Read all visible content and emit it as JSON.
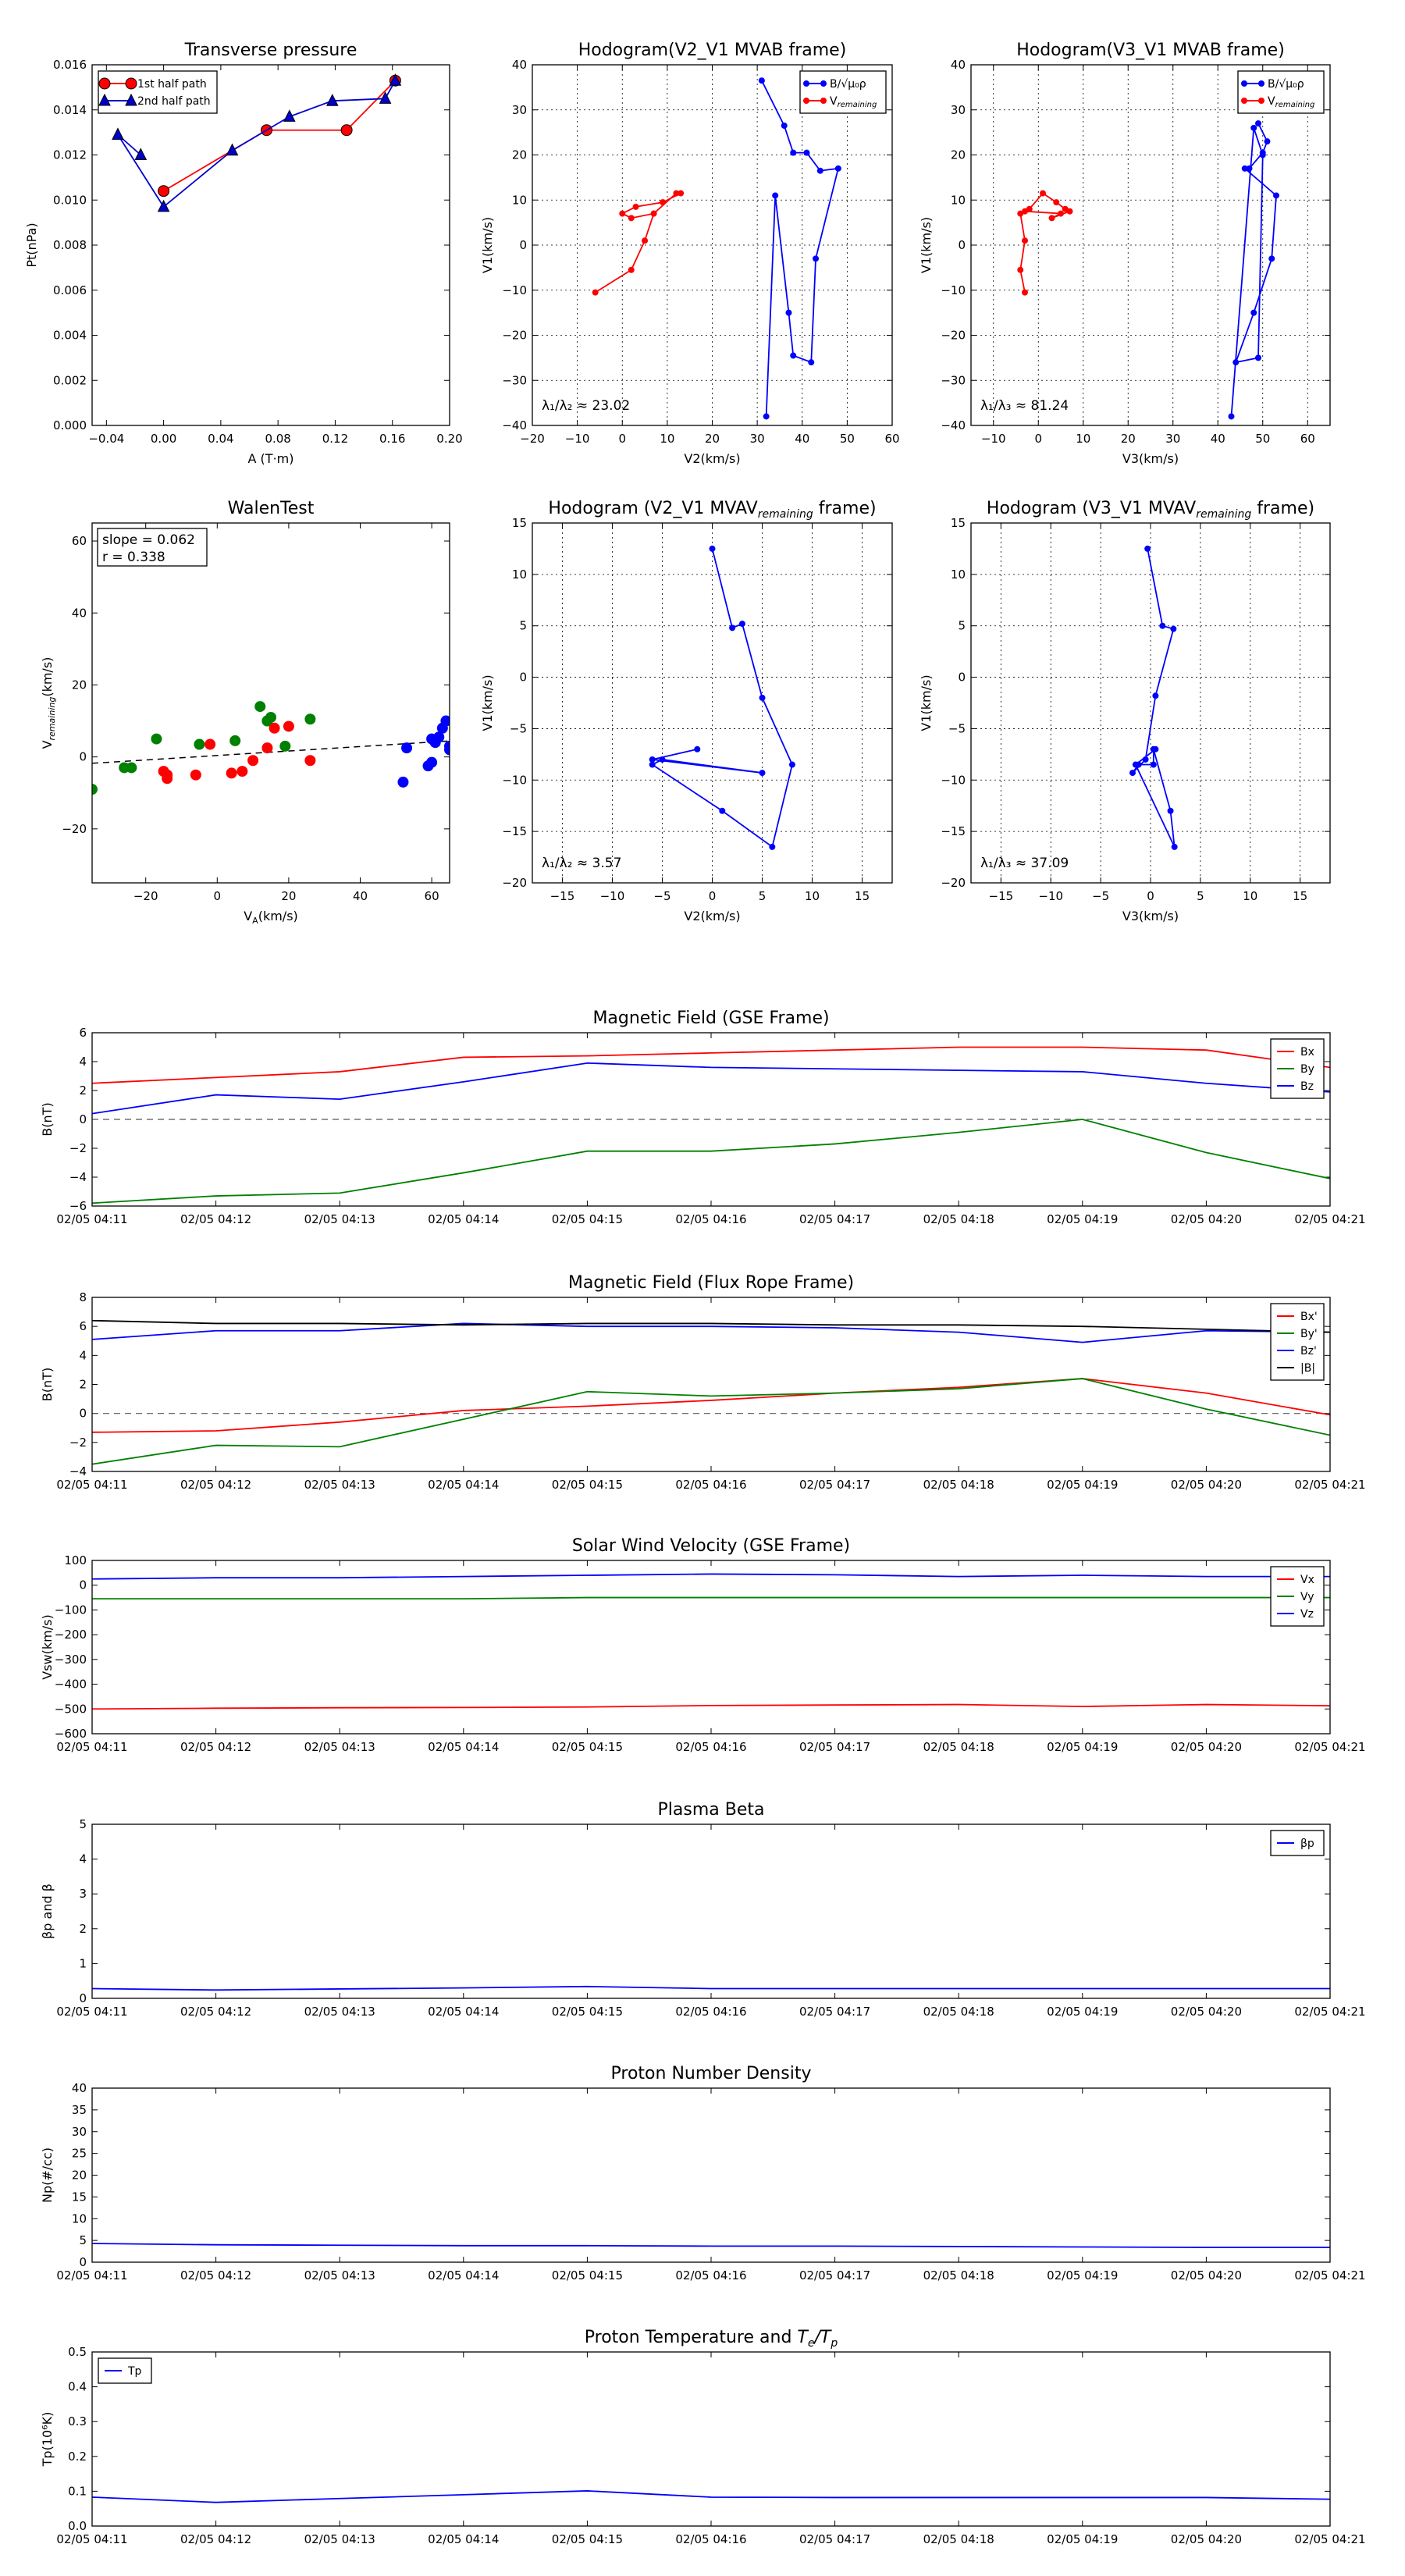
{
  "chart_data": [
    {
      "id": "pt",
      "type": "line",
      "title": "Transverse pressure",
      "xlabel": "A (T·m)",
      "ylabel": "Pt(nPa)",
      "xlim": [
        -0.05,
        0.2
      ],
      "ylim": [
        0,
        0.016
      ],
      "xticks": [
        -0.04,
        0.0,
        0.04,
        0.08,
        0.12,
        0.16,
        0.2
      ],
      "xticklabels": [
        "−0.04",
        "0.00",
        "0.04",
        "0.08",
        "0.12",
        "0.16",
        "0.20"
      ],
      "yticks": [
        0,
        0.002,
        0.004,
        0.006,
        0.008,
        0.01,
        0.012,
        0.014,
        0.016
      ],
      "yticklabels": [
        "0.000",
        "0.002",
        "0.004",
        "0.006",
        "0.008",
        "0.010",
        "0.012",
        "0.014",
        "0.016"
      ],
      "grid": false,
      "legend": "top-left",
      "series": [
        {
          "name": "1st half path",
          "color": "#ff0000",
          "marker": "circle",
          "x": [
            0.0,
            0.072,
            0.128,
            0.162
          ],
          "y": [
            0.0104,
            0.0131,
            0.0131,
            0.0153
          ]
        },
        {
          "name": "2nd half path",
          "color": "#0000cc",
          "marker": "triangle",
          "x": [
            0.162,
            0.155,
            0.118,
            0.088,
            0.048,
            0.0,
            -0.032,
            -0.016
          ],
          "y": [
            0.0153,
            0.0145,
            0.0144,
            0.0137,
            0.0122,
            0.0097,
            0.0129,
            0.012
          ]
        }
      ]
    },
    {
      "id": "h1",
      "type": "line",
      "title": "Hodogram(V2_V1 MVAB frame)",
      "xlabel": "V2(km/s)",
      "ylabel": "V1(km/s)",
      "xlim": [
        -20,
        60
      ],
      "ylim": [
        -40,
        40
      ],
      "xticks": [
        -20,
        -10,
        0,
        10,
        20,
        30,
        40,
        50,
        60
      ],
      "yticks": [
        -40,
        -30,
        -20,
        -10,
        0,
        10,
        20,
        30,
        40
      ],
      "grid": true,
      "legend": "top-right",
      "annotation": "λ₁/λ₂ ≈ 23.02",
      "series": [
        {
          "name": "B/√μ₀ρ",
          "color": "#0000ff",
          "marker": "dot",
          "x": [
            31,
            36,
            38,
            41,
            44,
            48,
            43,
            42,
            38,
            37,
            34,
            32
          ],
          "y": [
            36.5,
            26.5,
            20.5,
            20.5,
            16.5,
            17,
            -3,
            -26,
            -24.5,
            -15,
            11,
            -38
          ]
        },
        {
          "name": "V_remaining",
          "color": "#ff0000",
          "marker": "dot",
          "x": [
            13,
            9,
            3,
            0,
            2,
            7,
            12,
            7,
            5,
            2,
            -6
          ],
          "y": [
            11.5,
            9.5,
            8.5,
            7,
            6,
            7,
            11.5,
            7,
            1,
            -5.5,
            -10.5
          ]
        }
      ]
    },
    {
      "id": "h2",
      "type": "line",
      "title": "Hodogram(V3_V1 MVAB frame)",
      "xlabel": "V3(km/s)",
      "ylabel": "V1(km/s)",
      "xlim": [
        -15,
        65
      ],
      "ylim": [
        -40,
        40
      ],
      "xticks": [
        -10,
        0,
        10,
        20,
        30,
        40,
        50,
        60
      ],
      "yticks": [
        -40,
        -30,
        -20,
        -10,
        0,
        10,
        20,
        30,
        40
      ],
      "grid": true,
      "legend": "top-right",
      "annotation": "λ₁/λ₃ ≈ 81.24",
      "series": [
        {
          "name": "B/√μ₀ρ",
          "color": "#0000ff",
          "marker": "dot",
          "x": [
            49,
            51,
            50,
            47,
            46,
            53,
            52,
            48,
            44,
            49,
            50,
            48,
            43
          ],
          "y": [
            27,
            23,
            20.5,
            17,
            17,
            11,
            -3,
            -15,
            -26,
            -25,
            20,
            26,
            -38
          ]
        },
        {
          "name": "V_remaining",
          "color": "#ff0000",
          "marker": "dot",
          "x": [
            -3,
            -4,
            -3,
            -4,
            -2,
            1,
            4,
            6,
            7,
            3,
            5,
            -3
          ],
          "y": [
            -10.5,
            -5.5,
            1,
            7,
            8,
            11.5,
            9.5,
            8,
            7.5,
            6,
            7,
            7.5
          ]
        }
      ]
    },
    {
      "id": "walen",
      "type": "scatter",
      "title": "WalenTest",
      "xlabel": "V_A(km/s)",
      "ylabel": "V_remaining(km/s)",
      "xlim": [
        -35,
        65
      ],
      "ylim": [
        -35,
        65
      ],
      "xticks": [
        -20,
        0,
        20,
        40,
        60
      ],
      "yticks": [
        -20,
        0,
        20,
        40,
        60
      ],
      "grid": false,
      "annotation": [
        "slope = 0.062",
        "r = 0.338"
      ],
      "fit_line": {
        "slope": 0.062,
        "intercept": 0.4
      },
      "series": [
        {
          "name": "",
          "color": "#008000",
          "x": [
            -35,
            -26,
            -24,
            -17,
            -5,
            5,
            12,
            14,
            15,
            19,
            26,
            14
          ],
          "y": [
            -9,
            -3,
            -3,
            5,
            3.5,
            4.5,
            14,
            10,
            11,
            3,
            10.5,
            10
          ]
        },
        {
          "name": "",
          "color": "#ff0000",
          "x": [
            -15,
            -14,
            -14,
            -6,
            -2,
            4,
            7,
            10,
            14,
            16,
            20,
            26
          ],
          "y": [
            -4,
            -5,
            -6,
            -5,
            3.5,
            -4.5,
            -4,
            -1,
            2.5,
            8,
            8.5,
            -1
          ]
        },
        {
          "name": "",
          "color": "#0000ff",
          "x": [
            52,
            53,
            59,
            60,
            60,
            61,
            62,
            63,
            64,
            65,
            65
          ],
          "y": [
            -7,
            2.5,
            -2.5,
            5,
            -1.5,
            4,
            5.5,
            8,
            10,
            3,
            2
          ]
        }
      ]
    },
    {
      "id": "h3",
      "type": "line",
      "title": "Hodogram (V2_V1 MVAV_remaining frame)",
      "xlabel": "V2(km/s)",
      "ylabel": "V1(km/s)",
      "xlim": [
        -18,
        18
      ],
      "ylim": [
        -20,
        15
      ],
      "xticks": [
        -15,
        -10,
        -5,
        0,
        5,
        10,
        15
      ],
      "yticks": [
        -20,
        -15,
        -10,
        -5,
        0,
        5,
        10,
        15
      ],
      "grid": true,
      "annotation": "λ₁/λ₂ ≈ 3.57",
      "series": [
        {
          "name": "",
          "color": "#0000ff",
          "marker": "dot",
          "x": [
            0,
            2,
            3,
            5,
            8,
            6,
            1,
            -6,
            -5,
            5,
            -6,
            -1.5
          ],
          "y": [
            12.5,
            4.8,
            5.2,
            -2,
            -8.5,
            -16.5,
            -13,
            -8.5,
            -8,
            -9.3,
            -8,
            -7
          ]
        }
      ]
    },
    {
      "id": "h4",
      "type": "line",
      "title": "Hodogram (V3_V1 MVAV_remaining frame)",
      "xlabel": "V3(km/s)",
      "ylabel": "V1(km/s)",
      "xlim": [
        -18,
        18
      ],
      "ylim": [
        -20,
        15
      ],
      "xticks": [
        -15,
        -10,
        -5,
        0,
        5,
        10,
        15
      ],
      "yticks": [
        -20,
        -15,
        -10,
        -5,
        0,
        5,
        10,
        15
      ],
      "grid": true,
      "annotation": "λ₁/λ₃ ≈ 37.09",
      "series": [
        {
          "name": "",
          "color": "#0000ff",
          "marker": "dot",
          "x": [
            -0.3,
            1.2,
            2.3,
            0.5,
            -0.5,
            -1.8,
            -1.2,
            0.3,
            0.3,
            2.0,
            2.4,
            -1.5,
            0.5
          ],
          "y": [
            12.5,
            5,
            4.7,
            -1.8,
            -8,
            -9.3,
            -8.5,
            -8.5,
            -7,
            -13,
            -16.5,
            -8.5,
            -7
          ]
        }
      ]
    },
    {
      "id": "bgse",
      "type": "line",
      "title": "Magnetic Field (GSE Frame)",
      "ylabel": "B(nT)",
      "ylim": [
        -6,
        6
      ],
      "yticks": [
        -6,
        -4,
        -2,
        0,
        2,
        4,
        6
      ],
      "zero_line": true,
      "legend": "top-right",
      "x": [
        0,
        1,
        2,
        3,
        4,
        5,
        6,
        7,
        8,
        9,
        10
      ],
      "series": [
        {
          "name": "Bx",
          "color": "#ff0000",
          "values": [
            2.5,
            2.9,
            3.3,
            4.3,
            4.4,
            4.6,
            4.8,
            5.0,
            5.0,
            4.8,
            3.6
          ]
        },
        {
          "name": "By",
          "color": "#008000",
          "values": [
            -5.8,
            -5.3,
            -5.1,
            -3.7,
            -2.2,
            -2.2,
            -1.7,
            -0.9,
            0.0,
            -2.3,
            -4.1
          ]
        },
        {
          "name": "Bz",
          "color": "#0000ff",
          "values": [
            0.4,
            1.7,
            1.4,
            2.6,
            3.9,
            3.6,
            3.5,
            3.4,
            3.3,
            2.5,
            1.9
          ]
        }
      ]
    },
    {
      "id": "bfr",
      "type": "line",
      "title": "Magnetic Field (Flux Rope Frame)",
      "ylabel": "B(nT)",
      "ylim": [
        -4,
        8
      ],
      "yticks": [
        -4,
        -2,
        0,
        2,
        4,
        6,
        8
      ],
      "zero_line": true,
      "legend": "top-right",
      "x": [
        0,
        1,
        2,
        3,
        4,
        5,
        6,
        7,
        8,
        9,
        10
      ],
      "series": [
        {
          "name": "Bx'",
          "color": "#ff0000",
          "values": [
            -1.3,
            -1.2,
            -0.6,
            0.2,
            0.5,
            0.9,
            1.4,
            1.8,
            2.4,
            1.4,
            -0.1
          ]
        },
        {
          "name": "By'",
          "color": "#008000",
          "values": [
            -3.5,
            -2.2,
            -2.3,
            -0.4,
            1.5,
            1.2,
            1.4,
            1.7,
            2.4,
            0.3,
            -1.5
          ]
        },
        {
          "name": "Bz'",
          "color": "#0000ff",
          "values": [
            5.1,
            5.7,
            5.7,
            6.2,
            6.0,
            6.0,
            5.9,
            5.6,
            4.9,
            5.7,
            5.6
          ]
        },
        {
          "name": "|B|",
          "color": "#000000",
          "values": [
            6.4,
            6.2,
            6.2,
            6.1,
            6.2,
            6.2,
            6.1,
            6.1,
            6.0,
            5.8,
            5.6
          ]
        }
      ]
    },
    {
      "id": "vsw",
      "type": "line",
      "title": "Solar Wind Velocity (GSE Frame)",
      "ylabel": "Vsw(km/s)",
      "ylim": [
        -600,
        100
      ],
      "yticks": [
        -600,
        -500,
        -400,
        -300,
        -200,
        -100,
        0,
        100
      ],
      "legend": "top-right",
      "x": [
        0,
        1,
        2,
        3,
        4,
        5,
        6,
        7,
        8,
        9,
        10
      ],
      "series": [
        {
          "name": "Vx",
          "color": "#ff0000",
          "values": [
            -500,
            -497,
            -495,
            -494,
            -492,
            -486,
            -484,
            -482,
            -490,
            -482,
            -487
          ]
        },
        {
          "name": "Vy",
          "color": "#008000",
          "values": [
            -55,
            -55,
            -55,
            -55,
            -50,
            -50,
            -50,
            -50,
            -50,
            -50,
            -50
          ]
        },
        {
          "name": "Vz",
          "color": "#0000ff",
          "values": [
            25,
            30,
            30,
            35,
            40,
            45,
            42,
            35,
            40,
            35,
            35
          ]
        }
      ]
    },
    {
      "id": "beta",
      "type": "line",
      "title": "Plasma Beta",
      "ylabel": "βp and β",
      "ylim": [
        0,
        5
      ],
      "yticks": [
        0,
        1,
        2,
        3,
        4,
        5
      ],
      "legend": "top-right",
      "x": [
        0,
        1,
        2,
        3,
        4,
        5,
        6,
        7,
        8,
        9,
        10
      ],
      "series": [
        {
          "name": "βp",
          "color": "#0000ff",
          "values": [
            0.28,
            0.24,
            0.27,
            0.3,
            0.34,
            0.28,
            0.28,
            0.28,
            0.28,
            0.28,
            0.28
          ]
        }
      ]
    },
    {
      "id": "np",
      "type": "line",
      "title": "Proton Number Density",
      "ylabel": "Np(#/cc)",
      "ylim": [
        0,
        40
      ],
      "yticks": [
        0,
        5,
        10,
        15,
        20,
        25,
        30,
        35,
        40
      ],
      "x": [
        0,
        1,
        2,
        3,
        4,
        5,
        6,
        7,
        8,
        9,
        10
      ],
      "series": [
        {
          "name": "",
          "color": "#0000ff",
          "values": [
            4.3,
            4.0,
            3.9,
            3.8,
            3.8,
            3.7,
            3.7,
            3.6,
            3.5,
            3.4,
            3.4
          ]
        }
      ]
    },
    {
      "id": "tp",
      "type": "line",
      "title": "Proton Temperature and Te/Tp",
      "ylabel": "Tp(10⁶K)",
      "ylim": [
        0,
        0.5
      ],
      "yticks": [
        0,
        0.1,
        0.2,
        0.3,
        0.4,
        0.5
      ],
      "yticklabels": [
        "0.0",
        "0.1",
        "0.2",
        "0.3",
        "0.4",
        "0.5"
      ],
      "legend": "top-left",
      "x": [
        0,
        1,
        2,
        3,
        4,
        5,
        6,
        7,
        8,
        9,
        10
      ],
      "series": [
        {
          "name": "Tp",
          "color": "#0000ff",
          "values": [
            0.083,
            0.068,
            0.079,
            0.09,
            0.101,
            0.083,
            0.082,
            0.082,
            0.082,
            0.082,
            0.077
          ]
        }
      ]
    }
  ],
  "time_axis": {
    "labels": [
      "02/05 04:11",
      "02/05 04:12",
      "02/05 04:13",
      "02/05 04:14",
      "02/05 04:15",
      "02/05 04:16",
      "02/05 04:17",
      "02/05 04:18",
      "02/05 04:19",
      "02/05 04:20",
      "02/05 04:21"
    ]
  }
}
